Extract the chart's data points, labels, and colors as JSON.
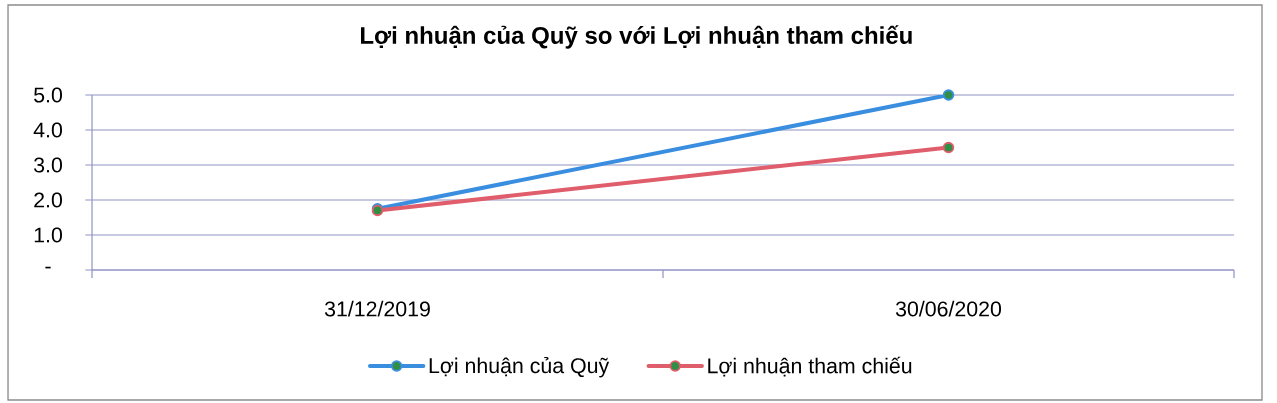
{
  "chart_data": {
    "type": "line",
    "title": "Lợi nhuận của Quỹ so với Lợi nhuận tham chiếu",
    "categories": [
      "31/12/2019",
      "30/06/2020"
    ],
    "series": [
      {
        "name": "Lợi nhuận của Quỹ",
        "color": "#3a8ee0",
        "values": [
          1.75,
          5.0
        ]
      },
      {
        "name": "Lợi nhuận tham chiếu",
        "color": "#e05d6b",
        "values": [
          1.7,
          3.5
        ]
      }
    ],
    "ylim": [
      0,
      5
    ],
    "yticks": [
      {
        "value": 0,
        "label": "-"
      },
      {
        "value": 1,
        "label": "1.0"
      },
      {
        "value": 2,
        "label": "2.0"
      },
      {
        "value": 3,
        "label": "3.0"
      },
      {
        "value": 4,
        "label": "4.0"
      },
      {
        "value": 5,
        "label": "5.0"
      }
    ],
    "grid": "y",
    "legend": "bottom",
    "marker": "circle",
    "line_style": "solid"
  }
}
